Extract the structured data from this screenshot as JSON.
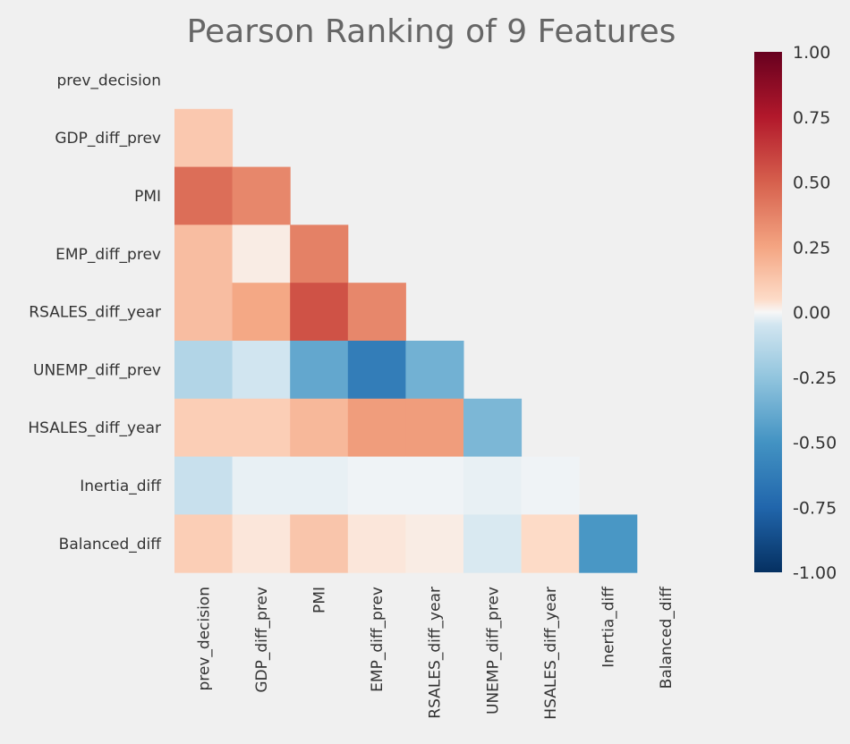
{
  "chart_data": {
    "type": "heatmap",
    "title": "Pearson Ranking of 9 Features",
    "features": [
      "prev_decision",
      "GDP_diff_prev",
      "PMI",
      "EMP_diff_prev",
      "RSALES_diff_year",
      "UNEMP_diff_prev",
      "HSALES_diff_year",
      "Inertia_diff",
      "Balanced_diff"
    ],
    "mask": "upper-triangle-including-diagonal",
    "matrix": [
      [
        null,
        null,
        null,
        null,
        null,
        null,
        null,
        null,
        null
      ],
      [
        0.12,
        null,
        null,
        null,
        null,
        null,
        null,
        null,
        null
      ],
      [
        0.45,
        0.36,
        null,
        null,
        null,
        null,
        null,
        null,
        null
      ],
      [
        0.16,
        0.02,
        0.38,
        null,
        null,
        null,
        null,
        null,
        null
      ],
      [
        0.16,
        0.24,
        0.55,
        0.36,
        null,
        null,
        null,
        null,
        null
      ],
      [
        -0.15,
        -0.05,
        -0.4,
        -0.62,
        -0.35,
        null,
        null,
        null,
        null
      ],
      [
        0.1,
        0.1,
        0.18,
        0.28,
        0.28,
        -0.32,
        null,
        null,
        null
      ],
      [
        -0.08,
        -0.02,
        -0.02,
        -0.01,
        -0.01,
        -0.02,
        -0.01,
        null,
        null
      ],
      [
        0.1,
        0.03,
        0.13,
        0.03,
        0.02,
        -0.04,
        0.05,
        -0.48,
        null
      ]
    ],
    "colormap": "RdBu_r",
    "vmin": -1.0,
    "vmax": 1.0,
    "colorbar_ticks": [
      "1.00",
      "0.75",
      "0.50",
      "0.25",
      "0.00",
      "-0.25",
      "-0.50",
      "-0.75",
      "-1.00"
    ],
    "colorbar_values": [
      1.0,
      0.75,
      0.5,
      0.25,
      0.0,
      -0.25,
      -0.5,
      -0.75,
      -1.0
    ],
    "colorbar_placement": "right",
    "grid": false
  }
}
